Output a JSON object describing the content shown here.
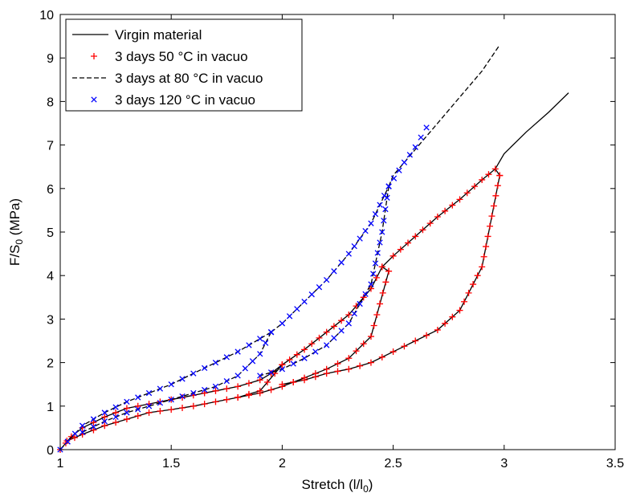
{
  "chart_data": {
    "type": "line",
    "title": "",
    "xlabel": "Stretch (l/l",
    "xlabel_sub": "0",
    "xlabel_suffix": ")",
    "ylabel": "F/S",
    "ylabel_sub": "0",
    "ylabel_suffix": " (MPa)",
    "xlim": [
      1,
      3.5
    ],
    "ylim": [
      0,
      10
    ],
    "xticks": [
      "1",
      "1.5",
      "2",
      "2.5",
      "3",
      "3.5"
    ],
    "yticks": [
      "0",
      "1",
      "2",
      "3",
      "4",
      "5",
      "6",
      "7",
      "8",
      "9",
      "10"
    ],
    "grid": false,
    "legend_position": "top-left",
    "series": [
      {
        "name": "Virgin material",
        "style": "solid",
        "color": "#000000",
        "loops": [
          {
            "load": [
              [
                1.0,
                0
              ],
              [
                1.05,
                0.3
              ],
              [
                1.1,
                0.5
              ],
              [
                1.2,
                0.75
              ],
              [
                1.3,
                0.95
              ],
              [
                1.4,
                1.05
              ],
              [
                1.5,
                1.15
              ],
              [
                1.6,
                1.25
              ],
              [
                1.7,
                1.35
              ],
              [
                1.8,
                1.45
              ],
              [
                1.9,
                1.6
              ],
              [
                1.95,
                1.75
              ],
              [
                2.0,
                1.95
              ]
            ],
            "unload": [
              [
                2.0,
                1.95
              ],
              [
                1.9,
                1.35
              ],
              [
                1.8,
                1.2
              ],
              [
                1.7,
                1.1
              ],
              [
                1.6,
                1.0
              ],
              [
                1.5,
                0.92
              ],
              [
                1.4,
                0.85
              ],
              [
                1.3,
                0.7
              ],
              [
                1.2,
                0.55
              ],
              [
                1.1,
                0.35
              ],
              [
                1.03,
                0.2
              ]
            ]
          },
          {
            "load": [
              [
                1.95,
                1.75
              ],
              [
                2.0,
                1.95
              ],
              [
                2.1,
                2.3
              ],
              [
                2.2,
                2.7
              ],
              [
                2.3,
                3.1
              ],
              [
                2.4,
                3.7
              ],
              [
                2.45,
                4.2
              ],
              [
                2.48,
                4.1
              ]
            ],
            "unload": [
              [
                2.48,
                4.1
              ],
              [
                2.4,
                2.6
              ],
              [
                2.3,
                2.1
              ],
              [
                2.2,
                1.85
              ],
              [
                2.1,
                1.65
              ],
              [
                2.0,
                1.45
              ],
              [
                1.9,
                1.3
              ],
              [
                1.8,
                1.2
              ]
            ]
          },
          {
            "load": [
              [
                2.45,
                4.2
              ],
              [
                2.5,
                4.45
              ],
              [
                2.6,
                4.9
              ],
              [
                2.7,
                5.35
              ],
              [
                2.8,
                5.75
              ],
              [
                2.9,
                6.2
              ],
              [
                2.96,
                6.45
              ],
              [
                2.98,
                6.3
              ]
            ],
            "unload": [
              [
                2.98,
                6.3
              ],
              [
                2.9,
                4.2
              ],
              [
                2.8,
                3.2
              ],
              [
                2.7,
                2.75
              ],
              [
                2.6,
                2.5
              ],
              [
                2.5,
                2.25
              ],
              [
                2.4,
                2.0
              ],
              [
                2.3,
                1.85
              ],
              [
                2.2,
                1.75
              ],
              [
                2.1,
                1.6
              ],
              [
                2.0,
                1.5
              ]
            ]
          },
          {
            "load": [
              [
                2.96,
                6.45
              ],
              [
                3.0,
                6.8
              ],
              [
                3.1,
                7.3
              ],
              [
                3.2,
                7.75
              ],
              [
                3.29,
                8.2
              ]
            ],
            "unload": []
          }
        ]
      },
      {
        "name": "3 days 50 °C in vacuo",
        "style": "plus-markers",
        "color": "#ff0000",
        "loops": [
          {
            "load": [
              [
                1.0,
                0
              ],
              [
                1.05,
                0.3
              ],
              [
                1.1,
                0.5
              ],
              [
                1.2,
                0.75
              ],
              [
                1.3,
                0.95
              ],
              [
                1.4,
                1.05
              ],
              [
                1.5,
                1.15
              ],
              [
                1.6,
                1.25
              ],
              [
                1.7,
                1.35
              ],
              [
                1.8,
                1.45
              ],
              [
                1.9,
                1.6
              ],
              [
                1.95,
                1.75
              ],
              [
                2.0,
                1.95
              ]
            ],
            "unload": [
              [
                2.0,
                1.95
              ],
              [
                1.9,
                1.35
              ],
              [
                1.8,
                1.2
              ],
              [
                1.7,
                1.1
              ],
              [
                1.6,
                1.0
              ],
              [
                1.5,
                0.92
              ],
              [
                1.4,
                0.85
              ],
              [
                1.3,
                0.7
              ],
              [
                1.2,
                0.55
              ],
              [
                1.1,
                0.35
              ],
              [
                1.03,
                0.2
              ]
            ]
          },
          {
            "load": [
              [
                1.95,
                1.75
              ],
              [
                2.0,
                1.95
              ],
              [
                2.1,
                2.3
              ],
              [
                2.2,
                2.7
              ],
              [
                2.3,
                3.1
              ],
              [
                2.4,
                3.7
              ],
              [
                2.45,
                4.2
              ],
              [
                2.48,
                4.1
              ]
            ],
            "unload": [
              [
                2.48,
                4.1
              ],
              [
                2.4,
                2.6
              ],
              [
                2.3,
                2.1
              ],
              [
                2.2,
                1.85
              ],
              [
                2.1,
                1.65
              ],
              [
                2.0,
                1.45
              ],
              [
                1.9,
                1.3
              ],
              [
                1.8,
                1.2
              ]
            ]
          },
          {
            "load": [
              [
                2.45,
                4.2
              ],
              [
                2.5,
                4.45
              ],
              [
                2.6,
                4.9
              ],
              [
                2.7,
                5.35
              ],
              [
                2.8,
                5.75
              ],
              [
                2.9,
                6.2
              ],
              [
                2.96,
                6.45
              ],
              [
                2.98,
                6.3
              ]
            ],
            "unload": [
              [
                2.98,
                6.3
              ],
              [
                2.9,
                4.2
              ],
              [
                2.8,
                3.2
              ],
              [
                2.7,
                2.75
              ],
              [
                2.6,
                2.5
              ],
              [
                2.5,
                2.25
              ],
              [
                2.4,
                2.0
              ],
              [
                2.3,
                1.85
              ],
              [
                2.2,
                1.75
              ],
              [
                2.1,
                1.6
              ],
              [
                2.0,
                1.5
              ]
            ]
          }
        ]
      },
      {
        "name": "3 days at 80 °C in vacuo",
        "style": "dashed",
        "color": "#000000",
        "loops": [
          {
            "load": [
              [
                1.0,
                0
              ],
              [
                1.1,
                0.55
              ],
              [
                1.2,
                0.85
              ],
              [
                1.3,
                1.1
              ],
              [
                1.4,
                1.3
              ],
              [
                1.5,
                1.5
              ],
              [
                1.6,
                1.75
              ],
              [
                1.7,
                2.0
              ],
              [
                1.8,
                2.25
              ],
              [
                1.9,
                2.55
              ],
              [
                1.95,
                2.7
              ]
            ],
            "unload": [
              [
                1.95,
                2.7
              ],
              [
                1.9,
                2.2
              ],
              [
                1.8,
                1.7
              ],
              [
                1.7,
                1.45
              ],
              [
                1.6,
                1.3
              ],
              [
                1.5,
                1.15
              ],
              [
                1.4,
                1.0
              ],
              [
                1.3,
                0.85
              ],
              [
                1.2,
                0.65
              ],
              [
                1.1,
                0.4
              ]
            ]
          },
          {
            "load": [
              [
                1.95,
                2.7
              ],
              [
                2.0,
                2.9
              ],
              [
                2.1,
                3.4
              ],
              [
                2.2,
                3.9
              ],
              [
                2.3,
                4.5
              ],
              [
                2.4,
                5.2
              ],
              [
                2.48,
                6.05
              ]
            ],
            "unload": [
              [
                2.48,
                6.05
              ],
              [
                2.45,
                5.0
              ],
              [
                2.4,
                3.8
              ],
              [
                2.3,
                2.9
              ],
              [
                2.2,
                2.4
              ],
              [
                2.1,
                2.1
              ],
              [
                2.0,
                1.85
              ],
              [
                1.9,
                1.7
              ]
            ]
          },
          {
            "load": [
              [
                2.48,
                6.05
              ],
              [
                2.5,
                6.3
              ],
              [
                2.6,
                6.9
              ],
              [
                2.7,
                7.5
              ],
              [
                2.8,
                8.1
              ],
              [
                2.9,
                8.7
              ],
              [
                2.98,
                9.3
              ]
            ],
            "unload": []
          }
        ]
      },
      {
        "name": "3 days 120 °C in vacuo",
        "style": "x-markers",
        "color": "#0000ff",
        "loops": [
          {
            "load": [
              [
                1.0,
                0
              ],
              [
                1.1,
                0.55
              ],
              [
                1.2,
                0.85
              ],
              [
                1.3,
                1.1
              ],
              [
                1.4,
                1.3
              ],
              [
                1.5,
                1.5
              ],
              [
                1.6,
                1.75
              ],
              [
                1.7,
                2.0
              ],
              [
                1.8,
                2.25
              ],
              [
                1.9,
                2.55
              ],
              [
                1.95,
                2.7
              ]
            ],
            "unload": [
              [
                1.95,
                2.7
              ],
              [
                1.9,
                2.2
              ],
              [
                1.8,
                1.7
              ],
              [
                1.7,
                1.45
              ],
              [
                1.6,
                1.3
              ],
              [
                1.5,
                1.15
              ],
              [
                1.4,
                1.0
              ],
              [
                1.3,
                0.85
              ],
              [
                1.2,
                0.65
              ],
              [
                1.1,
                0.4
              ]
            ]
          },
          {
            "load": [
              [
                1.95,
                2.7
              ],
              [
                2.0,
                2.9
              ],
              [
                2.1,
                3.4
              ],
              [
                2.2,
                3.9
              ],
              [
                2.3,
                4.5
              ],
              [
                2.4,
                5.2
              ],
              [
                2.48,
                6.05
              ]
            ],
            "unload": [
              [
                2.48,
                6.05
              ],
              [
                2.45,
                5.0
              ],
              [
                2.4,
                3.8
              ],
              [
                2.3,
                2.9
              ],
              [
                2.2,
                2.4
              ],
              [
                2.1,
                2.1
              ],
              [
                2.0,
                1.85
              ],
              [
                1.9,
                1.7
              ]
            ]
          },
          {
            "load": [
              [
                2.48,
                6.05
              ],
              [
                2.55,
                6.6
              ],
              [
                2.6,
                6.95
              ],
              [
                2.65,
                7.4
              ]
            ],
            "unload": []
          }
        ]
      }
    ]
  }
}
